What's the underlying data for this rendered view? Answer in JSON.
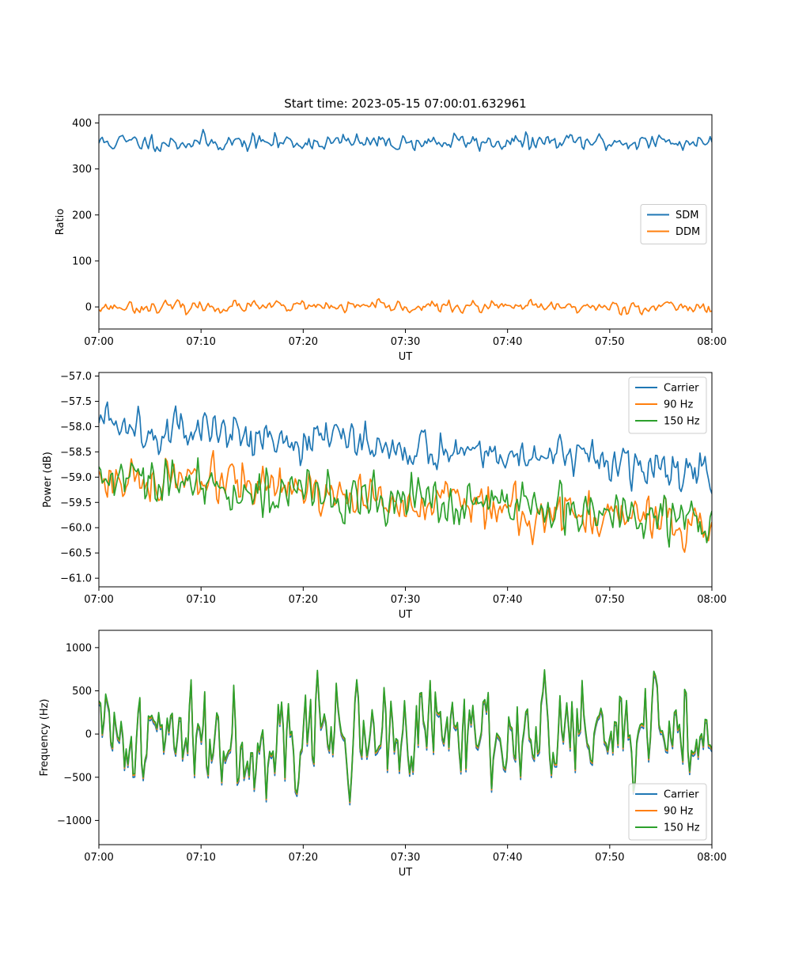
{
  "figure": {
    "title": "Start time: 2023-05-15 07:00:01.632961"
  },
  "colors": {
    "blue": "#1f77b4",
    "orange": "#ff7f0e",
    "green": "#2ca02c"
  },
  "chart_data": [
    {
      "type": "line",
      "title": "Start time: 2023-05-15 07:00:01.632961",
      "xlabel": "UT",
      "ylabel": "Ratio",
      "x_range": [
        "07:00",
        "08:00"
      ],
      "xticks": [
        "07:00",
        "07:10",
        "07:20",
        "07:30",
        "07:40",
        "07:50",
        "08:00"
      ],
      "ylim": [
        -48,
        418
      ],
      "yticks": [
        0,
        100,
        200,
        300,
        400
      ],
      "yticklabels": [
        "0",
        "100",
        "200",
        "300",
        "400"
      ],
      "grid": false,
      "legend_position": "center-right",
      "series": [
        {
          "name": "SDM",
          "color": "#1f77b4",
          "mean": 358,
          "noise": 13,
          "samples": 360,
          "seed": 11,
          "min": 320,
          "max": 398,
          "trend": 0
        },
        {
          "name": "DDM",
          "color": "#ff7f0e",
          "mean": 0,
          "noise": 9,
          "samples": 360,
          "seed": 23,
          "min": -28,
          "max": 26,
          "trend": 0
        }
      ]
    },
    {
      "type": "line",
      "title": "",
      "xlabel": "UT",
      "ylabel": "Power (dB)",
      "x_range": [
        "07:00",
        "08:00"
      ],
      "xticks": [
        "07:00",
        "07:10",
        "07:20",
        "07:30",
        "07:40",
        "07:50",
        "08:00"
      ],
      "ylim": [
        -61.17,
        -56.93
      ],
      "yticks": [
        -57.0,
        -57.5,
        -58.0,
        -58.5,
        -59.0,
        -59.5,
        -60.0,
        -60.5,
        -61.0
      ],
      "yticklabels": [
        "−57.0",
        "−57.5",
        "−58.0",
        "−58.5",
        "−59.0",
        "−59.5",
        "−60.0",
        "−60.5",
        "−61.0"
      ],
      "grid": false,
      "legend_position": "top-right",
      "series": [
        {
          "name": "Carrier",
          "color": "#1f77b4",
          "mean": -57.9,
          "trend": -0.95,
          "noise": 0.28,
          "samples": 360,
          "seed": 5,
          "min": -59.9,
          "max": -57.2
        },
        {
          "name": "90 Hz",
          "color": "#ff7f0e",
          "mean": -59.0,
          "trend": -0.95,
          "noise": 0.3,
          "samples": 360,
          "seed": 17,
          "min": -61.0,
          "max": -58.1
        },
        {
          "name": "150 Hz",
          "color": "#2ca02c",
          "mean": -59.05,
          "trend": -0.85,
          "noise": 0.33,
          "samples": 360,
          "seed": 29,
          "min": -60.85,
          "max": -58.1
        }
      ]
    },
    {
      "type": "line",
      "title": "",
      "xlabel": "UT",
      "ylabel": "Frequency (Hz)",
      "x_range": [
        "07:00",
        "08:00"
      ],
      "xticks": [
        "07:00",
        "07:10",
        "07:20",
        "07:30",
        "07:40",
        "07:50",
        "08:00"
      ],
      "ylim": [
        -1280,
        1200
      ],
      "yticks": [
        -1000,
        -500,
        0,
        500,
        1000
      ],
      "yticklabels": [
        "−1000",
        "−500",
        "0",
        "500",
        "1000"
      ],
      "grid": false,
      "legend_position": "lower-right",
      "series": [
        {
          "name": "Carrier",
          "color": "#1f77b4",
          "mean": 0,
          "noise": 420,
          "samples": 360,
          "seed": 41,
          "scale": 1.0,
          "offset": -40,
          "min": -1150,
          "max": 1050
        },
        {
          "name": "90 Hz",
          "color": "#ff7f0e",
          "mean": 0,
          "noise": 420,
          "samples": 360,
          "seed": 41,
          "scale": 1.0,
          "offset": -15,
          "min": -1120,
          "max": 1070
        },
        {
          "name": "150 Hz",
          "color": "#2ca02c",
          "mean": 0,
          "noise": 420,
          "samples": 360,
          "seed": 41,
          "scale": 1.0,
          "offset": 0,
          "min": -1100,
          "max": 1090
        }
      ]
    }
  ]
}
